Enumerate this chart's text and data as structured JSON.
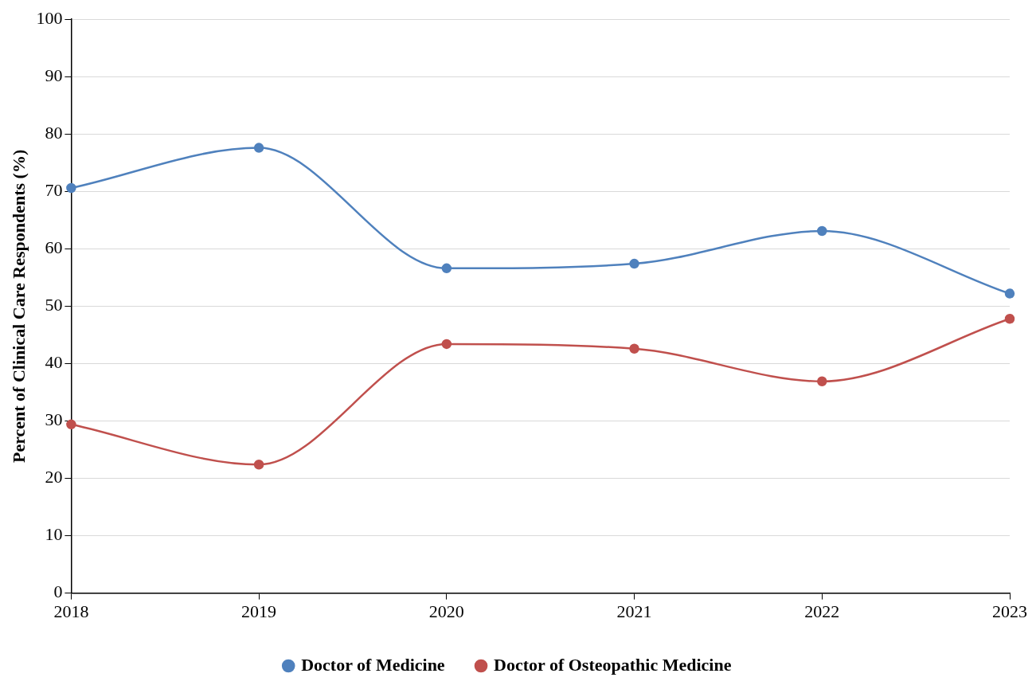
{
  "chart_data": {
    "type": "line",
    "ylabel": "Percent of Clinical Care Respondents (%)",
    "categories": [
      "2018",
      "2019",
      "2020",
      "2021",
      "2022",
      "2023"
    ],
    "series": [
      {
        "name": "Doctor of Medicine",
        "color": "#4f81bd",
        "values": [
          70.6,
          77.6,
          56.6,
          57.4,
          63.1,
          52.2
        ]
      },
      {
        "name": "Doctor of Osteopathic Medicine",
        "color": "#c0504d",
        "values": [
          29.4,
          22.4,
          43.4,
          42.6,
          36.9,
          47.8
        ]
      }
    ],
    "ylim": [
      0,
      100
    ],
    "yticks": [
      0,
      10,
      20,
      30,
      40,
      50,
      60,
      70,
      80,
      90,
      100
    ],
    "grid": "y",
    "legend": "bottom",
    "marker": "circle",
    "line_style": "solid"
  }
}
